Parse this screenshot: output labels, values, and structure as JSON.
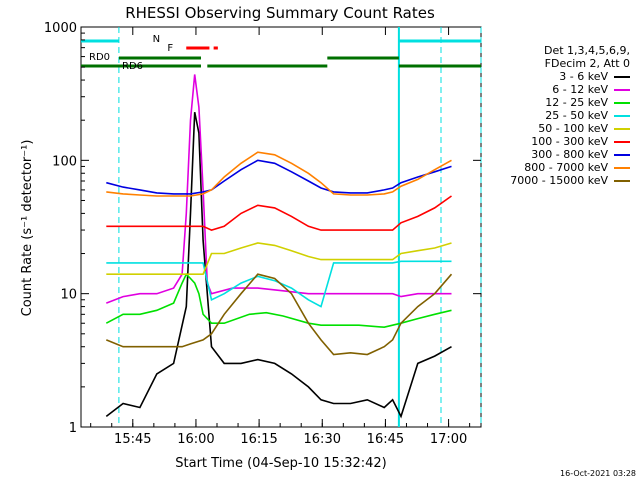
{
  "chart_data": {
    "type": "line",
    "title": "RHESSI Observing Summary Count Rates",
    "xlabel": "Start Time (04-Sep-10 15:32:42)",
    "ylabel": "Count Rate (s⁻¹ detector⁻¹)",
    "yscale": "log",
    "ylim": [
      1,
      1000
    ],
    "xlim_minutes": [
      0,
      95
    ],
    "x_ticks": [
      {
        "t": 12.3,
        "label": "15:45"
      },
      {
        "t": 27.3,
        "label": "16:00"
      },
      {
        "t": 42.3,
        "label": "16:15"
      },
      {
        "t": 57.3,
        "label": "16:30"
      },
      {
        "t": 72.3,
        "label": "16:45"
      },
      {
        "t": 87.3,
        "label": "17:00"
      }
    ],
    "y_ticks": [
      {
        "v": 1,
        "label": "1"
      },
      {
        "v": 10,
        "label": "10"
      },
      {
        "v": 100,
        "label": "100"
      },
      {
        "v": 1000,
        "label": "1000"
      }
    ],
    "legend_header": [
      "Det 1,3,4,5,6,9,",
      "FDecim 2, Att 0"
    ],
    "series": [
      {
        "name": "3 - 6 keV",
        "color": "#000000",
        "points": [
          [
            6,
            1.2
          ],
          [
            10,
            1.5
          ],
          [
            14,
            1.4
          ],
          [
            18,
            2.5
          ],
          [
            22,
            3
          ],
          [
            25,
            8
          ],
          [
            26,
            40
          ],
          [
            27,
            230
          ],
          [
            28,
            160
          ],
          [
            29,
            25
          ],
          [
            31,
            4
          ],
          [
            34,
            3
          ],
          [
            38,
            3
          ],
          [
            42,
            3.2
          ],
          [
            46,
            3
          ],
          [
            50,
            2.5
          ],
          [
            54,
            2
          ],
          [
            57,
            1.6
          ],
          [
            60,
            1.5
          ],
          [
            64,
            1.5
          ],
          [
            68,
            1.6
          ],
          [
            72,
            1.4
          ],
          [
            74,
            1.6
          ],
          [
            76,
            1.2
          ],
          [
            80,
            3
          ],
          [
            84,
            3.4
          ],
          [
            88,
            4
          ]
        ]
      },
      {
        "name": "6 - 12 keV",
        "color": "#e000e0",
        "points": [
          [
            6,
            8.5
          ],
          [
            10,
            9.5
          ],
          [
            14,
            10
          ],
          [
            18,
            10
          ],
          [
            22,
            11
          ],
          [
            24,
            14
          ],
          [
            25,
            40
          ],
          [
            26,
            200
          ],
          [
            27,
            440
          ],
          [
            28,
            250
          ],
          [
            29,
            60
          ],
          [
            30,
            12
          ],
          [
            31,
            10
          ],
          [
            36,
            11
          ],
          [
            42,
            11
          ],
          [
            48,
            10.5
          ],
          [
            54,
            10
          ],
          [
            57,
            10
          ],
          [
            60,
            10
          ],
          [
            66,
            10
          ],
          [
            72,
            10
          ],
          [
            74,
            10
          ],
          [
            76,
            9.5
          ],
          [
            80,
            10
          ],
          [
            84,
            10
          ],
          [
            88,
            10
          ]
        ]
      },
      {
        "name": "12 - 25 keV",
        "color": "#00e000",
        "points": [
          [
            6,
            6
          ],
          [
            10,
            7
          ],
          [
            14,
            7
          ],
          [
            18,
            7.5
          ],
          [
            22,
            8.5
          ],
          [
            24,
            12
          ],
          [
            25,
            14
          ],
          [
            26,
            13
          ],
          [
            27,
            12
          ],
          [
            28,
            10
          ],
          [
            29,
            7
          ],
          [
            31,
            6
          ],
          [
            34,
            6
          ],
          [
            40,
            7
          ],
          [
            44,
            7.2
          ],
          [
            48,
            6.8
          ],
          [
            54,
            6
          ],
          [
            57,
            5.8
          ],
          [
            60,
            5.8
          ],
          [
            66,
            5.8
          ],
          [
            72,
            5.6
          ],
          [
            74,
            5.8
          ],
          [
            76,
            6
          ],
          [
            80,
            6.5
          ],
          [
            84,
            7
          ],
          [
            88,
            7.5
          ]
        ]
      },
      {
        "name": "25 - 50 keV",
        "color": "#00e0e0",
        "points": [
          [
            6,
            17
          ],
          [
            10,
            17
          ],
          [
            14,
            17
          ],
          [
            18,
            17
          ],
          [
            22,
            17
          ],
          [
            26,
            17
          ],
          [
            29,
            17
          ],
          [
            31,
            9
          ],
          [
            34,
            10
          ],
          [
            38,
            12
          ],
          [
            42,
            13.5
          ],
          [
            46,
            12.5
          ],
          [
            50,
            11
          ],
          [
            54,
            9
          ],
          [
            57,
            8
          ],
          [
            60,
            17
          ],
          [
            66,
            17
          ],
          [
            72,
            17
          ],
          [
            74,
            17
          ],
          [
            76,
            17.5
          ],
          [
            80,
            17.5
          ],
          [
            84,
            17.5
          ],
          [
            88,
            17.5
          ]
        ]
      },
      {
        "name": "50 - 100 keV",
        "color": "#d0d000",
        "points": [
          [
            6,
            14
          ],
          [
            10,
            14
          ],
          [
            14,
            14
          ],
          [
            18,
            14
          ],
          [
            22,
            14
          ],
          [
            26,
            14
          ],
          [
            29,
            14
          ],
          [
            31,
            20
          ],
          [
            34,
            20
          ],
          [
            38,
            22
          ],
          [
            42,
            24
          ],
          [
            46,
            23
          ],
          [
            50,
            21
          ],
          [
            54,
            19
          ],
          [
            57,
            18
          ],
          [
            60,
            18
          ],
          [
            66,
            18
          ],
          [
            72,
            18
          ],
          [
            74,
            18
          ],
          [
            76,
            20
          ],
          [
            80,
            21
          ],
          [
            84,
            22
          ],
          [
            88,
            24
          ]
        ]
      },
      {
        "name": "100 - 300 keV",
        "color": "#ff0000",
        "points": [
          [
            6,
            32
          ],
          [
            10,
            32
          ],
          [
            14,
            32
          ],
          [
            18,
            32
          ],
          [
            22,
            32
          ],
          [
            26,
            32
          ],
          [
            29,
            32
          ],
          [
            31,
            30
          ],
          [
            34,
            32
          ],
          [
            38,
            40
          ],
          [
            42,
            46
          ],
          [
            46,
            44
          ],
          [
            50,
            38
          ],
          [
            54,
            32
          ],
          [
            57,
            30
          ],
          [
            60,
            30
          ],
          [
            66,
            30
          ],
          [
            72,
            30
          ],
          [
            74,
            30
          ],
          [
            76,
            34
          ],
          [
            80,
            38
          ],
          [
            84,
            44
          ],
          [
            88,
            54
          ]
        ]
      },
      {
        "name": "300 - 800 keV",
        "color": "#0000e0",
        "points": [
          [
            6,
            68
          ],
          [
            10,
            63
          ],
          [
            14,
            60
          ],
          [
            18,
            57
          ],
          [
            22,
            56
          ],
          [
            26,
            56
          ],
          [
            29,
            58
          ],
          [
            31,
            60
          ],
          [
            34,
            70
          ],
          [
            38,
            85
          ],
          [
            42,
            100
          ],
          [
            46,
            95
          ],
          [
            50,
            82
          ],
          [
            54,
            70
          ],
          [
            57,
            62
          ],
          [
            60,
            58
          ],
          [
            64,
            57
          ],
          [
            68,
            57
          ],
          [
            72,
            60
          ],
          [
            74,
            62
          ],
          [
            76,
            68
          ],
          [
            80,
            75
          ],
          [
            84,
            82
          ],
          [
            88,
            90
          ]
        ]
      },
      {
        "name": "800 - 7000 keV",
        "color": "#ff8000",
        "points": [
          [
            6,
            58
          ],
          [
            10,
            56
          ],
          [
            14,
            55
          ],
          [
            18,
            54
          ],
          [
            22,
            54
          ],
          [
            26,
            54
          ],
          [
            29,
            56
          ],
          [
            31,
            60
          ],
          [
            34,
            75
          ],
          [
            38,
            95
          ],
          [
            42,
            115
          ],
          [
            46,
            110
          ],
          [
            50,
            95
          ],
          [
            54,
            80
          ],
          [
            57,
            68
          ],
          [
            60,
            56
          ],
          [
            64,
            55
          ],
          [
            68,
            55
          ],
          [
            72,
            56
          ],
          [
            74,
            58
          ],
          [
            76,
            64
          ],
          [
            80,
            72
          ],
          [
            84,
            85
          ],
          [
            88,
            100
          ]
        ]
      },
      {
        "name": "7000 - 15000 keV",
        "color": "#806000",
        "points": [
          [
            6,
            4.5
          ],
          [
            10,
            4
          ],
          [
            14,
            4
          ],
          [
            18,
            4
          ],
          [
            22,
            4
          ],
          [
            24,
            4
          ],
          [
            26,
            4.2
          ],
          [
            29,
            4.5
          ],
          [
            31,
            5
          ],
          [
            34,
            7
          ],
          [
            38,
            10
          ],
          [
            42,
            14
          ],
          [
            46,
            13
          ],
          [
            50,
            10
          ],
          [
            54,
            6
          ],
          [
            57,
            4.5
          ],
          [
            60,
            3.5
          ],
          [
            64,
            3.6
          ],
          [
            68,
            3.5
          ],
          [
            72,
            4
          ],
          [
            74,
            4.5
          ],
          [
            76,
            6
          ],
          [
            80,
            8
          ],
          [
            84,
            10
          ],
          [
            88,
            14
          ]
        ]
      }
    ],
    "markers": [
      {
        "label": "N",
        "color": "#00e0e0"
      },
      {
        "label": "F",
        "color": "#ff0000"
      },
      {
        "label": "RD0",
        "color": "#007000"
      },
      {
        "label": "RD6",
        "color": "#007000"
      }
    ]
  },
  "timestamp": "16-Oct-2021 03:28"
}
